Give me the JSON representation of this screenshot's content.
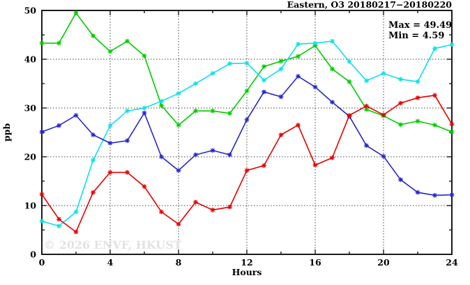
{
  "chart": {
    "title": "Eastern, O3 20180217−20180220",
    "annotation": {
      "max_label": "Max = 49.49",
      "min_label": "Min =  4.59"
    },
    "xlabel": "Hours",
    "ylabel": "ppb",
    "watermark": "© 2026 ENVF, HKUST"
  },
  "chart_data": {
    "type": "line",
    "title": "Eastern, O3 20180217−20180220",
    "xlabel": "Hours",
    "ylabel": "ppb",
    "xlim": [
      0,
      24
    ],
    "ylim": [
      0,
      50
    ],
    "grid": "dotted lines at major ticks",
    "legend_position": "none",
    "annotations": {
      "max": 49.49,
      "min": 4.59
    },
    "x_major_ticks": [
      0,
      4,
      8,
      12,
      16,
      20,
      24
    ],
    "x_tick_labels": [
      "0",
      "4",
      "8",
      "12",
      "16",
      "20",
      "24"
    ],
    "x_minor_ticks": [
      2,
      6,
      10,
      14,
      18,
      22
    ],
    "y_major_ticks": [
      0,
      10,
      20,
      30,
      40,
      50
    ],
    "y_tick_labels": [
      "0",
      "10",
      "20",
      "30",
      "40",
      "50"
    ],
    "y_minor_ticks": [
      5,
      15,
      25,
      35,
      45
    ],
    "marker": "asterisk",
    "x": [
      0,
      1,
      2,
      3,
      4,
      5,
      6,
      7,
      8,
      9,
      10,
      11,
      12,
      13,
      14,
      15,
      16,
      17,
      18,
      19,
      20,
      21,
      22,
      23,
      24
    ],
    "series": [
      {
        "name": "green-series",
        "color": "#00cc00",
        "values": [
          43.3,
          43.3,
          49.49,
          44.8,
          41.6,
          43.7,
          40.7,
          30.5,
          26.5,
          29.4,
          29.4,
          28.9,
          33.5,
          38.5,
          39.6,
          40.6,
          42.8,
          38.0,
          35.4,
          29.7,
          28.4,
          26.6,
          27.3,
          26.5,
          25.1
        ]
      },
      {
        "name": "cyan-series",
        "color": "#0ce0ea",
        "values": [
          6.8,
          5.8,
          8.7,
          19.3,
          26.4,
          29.4,
          30.0,
          31.4,
          33.0,
          35.0,
          37.1,
          39.1,
          39.2,
          35.7,
          38.0,
          43.1,
          43.3,
          43.7,
          39.5,
          35.6,
          37.1,
          35.9,
          35.4,
          42.2,
          43.0
        ]
      },
      {
        "name": "blue-series",
        "color": "#2626cc",
        "values": [
          25.1,
          26.4,
          28.5,
          24.5,
          22.8,
          23.3,
          29.0,
          20.0,
          17.2,
          20.4,
          21.3,
          20.4,
          27.6,
          33.3,
          32.3,
          36.5,
          34.3,
          31.2,
          28.3,
          22.3,
          20.1,
          15.3,
          12.7,
          12.1,
          12.2
        ]
      },
      {
        "name": "red-series",
        "color": "#e60000",
        "values": [
          12.3,
          7.2,
          4.59,
          12.7,
          16.8,
          16.8,
          13.9,
          8.7,
          6.2,
          10.7,
          9.1,
          9.7,
          17.2,
          18.2,
          24.5,
          26.5,
          18.3,
          19.8,
          28.5,
          30.4,
          28.6,
          31.0,
          32.1,
          32.6,
          26.7
        ]
      }
    ]
  }
}
